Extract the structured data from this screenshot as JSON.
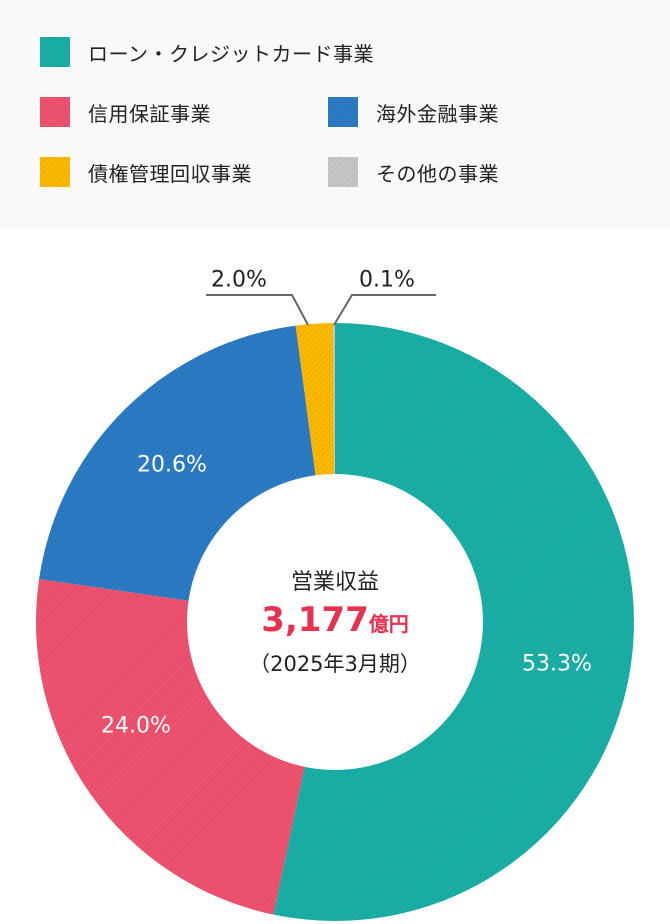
{
  "chart_data": {
    "type": "pie",
    "variant": "donut",
    "title": "営業収益",
    "center_label": {
      "title": "営業収益",
      "value": "3,177",
      "unit": "億円",
      "period": "（2025年3月期）"
    },
    "categories": [
      "ローン・クレジットカード事業",
      "信用保証事業",
      "海外金融事業",
      "債権管理回収事業",
      "その他の事業"
    ],
    "values": [
      53.3,
      24.0,
      20.6,
      2.0,
      0.1
    ],
    "colors": [
      "#1aafa6",
      "#ee526e",
      "#2b7bc4",
      "#fdb900",
      "#c6c6c6"
    ],
    "legend_position": "top",
    "value_unit": "%"
  },
  "legend": {
    "items": [
      {
        "label": "ローン・クレジットカード事業",
        "color": "#1aafa6"
      },
      {
        "label": "信用保証事業",
        "color": "#ee526e"
      },
      {
        "label": "海外金融事業",
        "color": "#2b7bc4"
      },
      {
        "label": "債権管理回収事業",
        "color": "#fdb900"
      },
      {
        "label": "その他の事業",
        "color": "#c6c6c6"
      }
    ]
  },
  "labels": {
    "loan": "53.3%",
    "guarantee": "24.0%",
    "overseas": "20.6%",
    "servicer": "2.0%",
    "other": "0.1%"
  }
}
